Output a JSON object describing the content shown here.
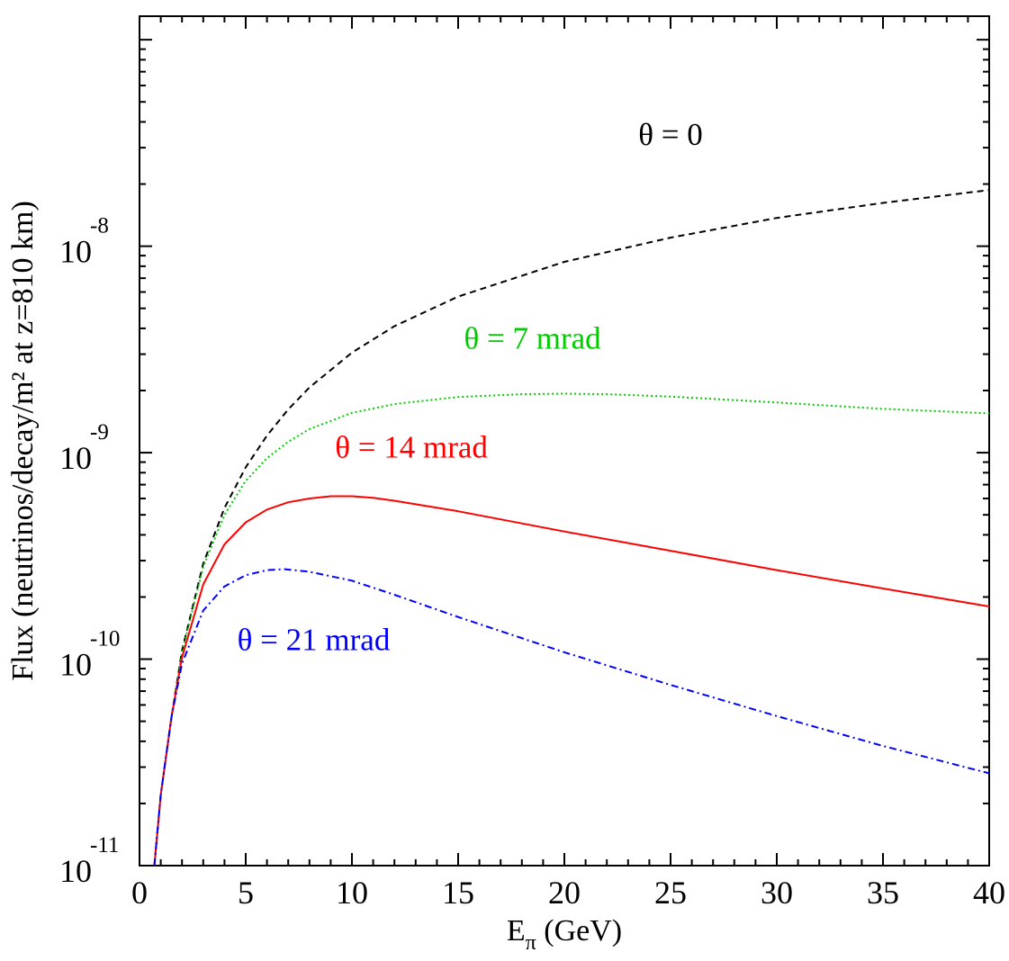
{
  "chart_data": {
    "type": "line",
    "title": "",
    "xlabel": {
      "main": "E",
      "sub": "π",
      "unit": " (GeV)"
    },
    "ylabel": "Flux (neutrinos/decay/m² at z=810 km)",
    "xlim": [
      0,
      40
    ],
    "ylim": [
      1e-11,
      1.3e-07
    ],
    "yscale": "log",
    "x_ticks": [
      0,
      5,
      10,
      15,
      20,
      25,
      30,
      35,
      40
    ],
    "x_tick_labels": [
      "0",
      "5",
      "10",
      "15",
      "20",
      "25",
      "30",
      "35",
      "40"
    ],
    "y_ticks": [
      {
        "value": 1e-08,
        "base": "10",
        "exponent": "-8"
      },
      {
        "value": 1e-09,
        "base": "10",
        "exponent": "-9"
      },
      {
        "value": 1e-10,
        "base": "10",
        "exponent": "-10"
      },
      {
        "value": 1e-11,
        "base": "10",
        "exponent": "-11"
      }
    ],
    "series": [
      {
        "label": "θ = 0",
        "color": "#000000",
        "dash": "dashed",
        "label_at": [
          25,
          3.5e-08
        ],
        "points": [
          [
            0.7,
            1e-11
          ],
          [
            1,
            2.2e-11
          ],
          [
            1.5,
            5.2e-11
          ],
          [
            2,
            1.1e-10
          ],
          [
            3,
            2.9e-10
          ],
          [
            4,
            5.4e-10
          ],
          [
            5,
            8.5e-10
          ],
          [
            6,
            1.21e-09
          ],
          [
            7,
            1.62e-09
          ],
          [
            8,
            2.07e-09
          ],
          [
            10,
            3.05e-09
          ],
          [
            12,
            4.1e-09
          ],
          [
            15,
            5.7e-09
          ],
          [
            20,
            8.4e-09
          ],
          [
            25,
            1.1e-08
          ],
          [
            30,
            1.37e-08
          ],
          [
            35,
            1.62e-08
          ],
          [
            40,
            1.87e-08
          ]
        ]
      },
      {
        "label": "θ = 7 mrad",
        "color": "#00cc00",
        "dash": "dotted",
        "label_at": [
          18.5,
          3.6e-09
        ],
        "points": [
          [
            0.7,
            1e-11
          ],
          [
            1,
            2.2e-11
          ],
          [
            1.5,
            5.2e-11
          ],
          [
            2,
            1.08e-10
          ],
          [
            3,
            2.8e-10
          ],
          [
            4,
            5e-10
          ],
          [
            5,
            7.3e-10
          ],
          [
            6,
            9.4e-10
          ],
          [
            7,
            1.13e-09
          ],
          [
            8,
            1.3e-09
          ],
          [
            10,
            1.56e-09
          ],
          [
            12,
            1.72e-09
          ],
          [
            15,
            1.86e-09
          ],
          [
            18,
            1.92e-09
          ],
          [
            20,
            1.93e-09
          ],
          [
            22,
            1.92e-09
          ],
          [
            25,
            1.87e-09
          ],
          [
            30,
            1.75e-09
          ],
          [
            35,
            1.63e-09
          ],
          [
            40,
            1.55e-09
          ]
        ]
      },
      {
        "label": "θ = 14 mrad",
        "color": "#ff0000",
        "dash": "solid",
        "label_at": [
          12.8,
          1.07e-09
        ],
        "points": [
          [
            0.7,
            1e-11
          ],
          [
            1,
            2.2e-11
          ],
          [
            1.5,
            5.2e-11
          ],
          [
            2,
            1.02e-10
          ],
          [
            3,
            2.3e-10
          ],
          [
            4,
            3.6e-10
          ],
          [
            5,
            4.6e-10
          ],
          [
            6,
            5.3e-10
          ],
          [
            7,
            5.75e-10
          ],
          [
            8,
            6e-10
          ],
          [
            9,
            6.15e-10
          ],
          [
            10,
            6.15e-10
          ],
          [
            11,
            6.05e-10
          ],
          [
            12,
            5.85e-10
          ],
          [
            15,
            5.2e-10
          ],
          [
            20,
            4.15e-10
          ],
          [
            25,
            3.35e-10
          ],
          [
            30,
            2.7e-10
          ],
          [
            35,
            2.2e-10
          ],
          [
            40,
            1.8e-10
          ]
        ]
      },
      {
        "label": "θ = 21 mrad",
        "color": "#0000ff",
        "dash": "dashdot",
        "label_at": [
          8.2,
          1.25e-10
        ],
        "points": [
          [
            0.7,
            1e-11
          ],
          [
            1,
            2.2e-11
          ],
          [
            1.5,
            5.2e-11
          ],
          [
            2,
            9.5e-11
          ],
          [
            3,
            1.72e-10
          ],
          [
            4,
            2.25e-10
          ],
          [
            5,
            2.55e-10
          ],
          [
            6,
            2.7e-10
          ],
          [
            6.8,
            2.73e-10
          ],
          [
            8,
            2.65e-10
          ],
          [
            10,
            2.4e-10
          ],
          [
            12,
            2.05e-10
          ],
          [
            15,
            1.6e-10
          ],
          [
            20,
            1.08e-10
          ],
          [
            25,
            7.5e-11
          ],
          [
            30,
            5.3e-11
          ],
          [
            35,
            3.8e-11
          ],
          [
            40,
            2.8e-11
          ]
        ]
      }
    ]
  }
}
